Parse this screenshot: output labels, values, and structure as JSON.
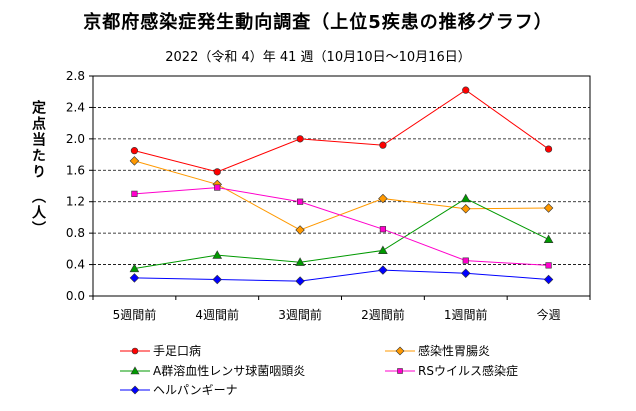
{
  "chart_data": {
    "type": "line",
    "title": "京都府感染症発生動向調査（上位5疾患の推移グラフ）",
    "subtitle": "2022（令和 4）年 41 週（10月10日～10月16日）",
    "ylabel": "定点当たり　（人）",
    "xlabel": "",
    "categories": [
      "5週間前",
      "4週間前",
      "3週間前",
      "2週間前",
      "1週間前",
      "今週"
    ],
    "ylim": [
      0,
      2.8
    ],
    "yticks": [
      "0.0",
      "0.4",
      "0.8",
      "1.2",
      "1.6",
      "2.0",
      "2.4",
      "2.8"
    ],
    "grid": "horizontal dashed",
    "legend_position": "bottom",
    "series": [
      {
        "name": "手足口病",
        "color": "#ff0000",
        "marker": "circle",
        "values": [
          1.85,
          1.58,
          2.0,
          1.92,
          2.62,
          1.87
        ]
      },
      {
        "name": "感染性胃腸炎",
        "color": "#ff9900",
        "marker": "diamond",
        "values": [
          1.72,
          1.42,
          0.84,
          1.24,
          1.11,
          1.12
        ]
      },
      {
        "name": "A群溶血性レンサ球菌咽頭炎",
        "color": "#009900",
        "marker": "triangle",
        "values": [
          0.35,
          0.52,
          0.43,
          0.58,
          1.24,
          0.72
        ]
      },
      {
        "name": "RSウイルス感染症",
        "color": "#ff00cc",
        "marker": "square",
        "values": [
          1.3,
          1.38,
          1.2,
          0.85,
          0.45,
          0.39
        ]
      },
      {
        "name": "ヘルパンギーナ",
        "color": "#0000ff",
        "marker": "diamond",
        "values": [
          0.23,
          0.21,
          0.19,
          0.33,
          0.29,
          0.21
        ]
      }
    ]
  }
}
